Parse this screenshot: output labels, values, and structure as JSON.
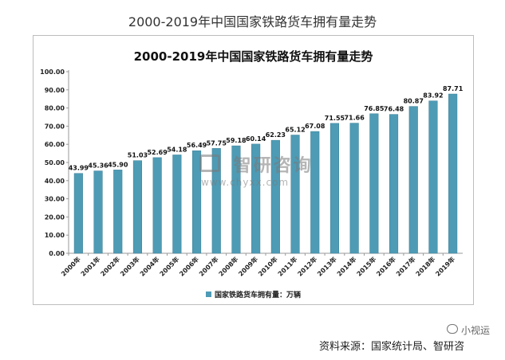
{
  "page_title": "2000-2019年中国国家铁路货车拥有量走势",
  "source_text": "资料来源：国家统计局、智研咨",
  "wechat_text": "小视运",
  "watermark": {
    "brand": "智研咨询",
    "url": "www.chyxx.com"
  },
  "colors": {
    "bar": "#4e9bb5",
    "bar_edge": "#3d7f96",
    "frame": "#bdbdbd"
  },
  "chart_data": {
    "type": "bar",
    "title": "2000-2019年中国国家铁路货车拥有量走势",
    "xlabel": "",
    "ylabel": "",
    "ylim": [
      0,
      100
    ],
    "y_ticks": [
      "0.00",
      "10.00",
      "20.00",
      "30.00",
      "40.00",
      "50.00",
      "60.00",
      "70.00",
      "80.00",
      "90.00",
      "100.00"
    ],
    "grid": false,
    "legend_position": "bottom",
    "categories": [
      "2000年",
      "2001年",
      "2002年",
      "2003年",
      "2004年",
      "2005年",
      "2006年",
      "2007年",
      "2008年",
      "2009年",
      "2010年",
      "2011年",
      "2012年",
      "2013年",
      "2014年",
      "2015年",
      "2016年",
      "2017年",
      "2018年",
      "2019年"
    ],
    "series": [
      {
        "name": "国家铁路货车拥有量：万辆",
        "values": [
          43.99,
          45.36,
          45.9,
          51.03,
          52.69,
          54.18,
          56.49,
          57.75,
          59.18,
          60.14,
          62.23,
          65.12,
          67.08,
          71.55,
          71.66,
          76.85,
          76.48,
          80.87,
          83.92,
          87.71
        ],
        "labels": [
          "43.99",
          "45.36",
          "45.90",
          "51.03",
          "52.69",
          "54.18",
          "56.49",
          "57.75",
          "59.18",
          "60.14",
          "62.23",
          "65.12",
          "67.08",
          "71.55",
          "71.66",
          "76.85",
          "76.48",
          "80.87",
          "83.92",
          "87.71"
        ]
      }
    ]
  }
}
